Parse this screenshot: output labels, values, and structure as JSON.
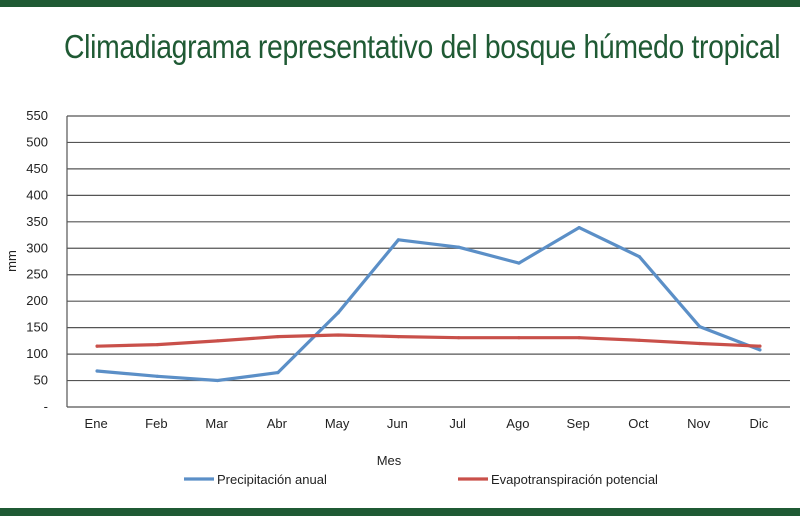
{
  "page": {
    "title": "Climadiagrama representativo del bosque húmedo tropical"
  },
  "colors": {
    "band": "#1f5a34",
    "title": "#1f5a34",
    "grid": "#555555",
    "precipitation": "#5b8fc7",
    "evapotranspiration": "#c9504a"
  },
  "chart_data": {
    "type": "line",
    "title": "Climadiagrama representativo del bosque húmedo tropical",
    "xlabel": "Mes",
    "ylabel": "mm",
    "categories": [
      "Ene",
      "Feb",
      "Mar",
      "Abr",
      "May",
      "Jun",
      "Jul",
      "Ago",
      "Sep",
      "Oct",
      "Nov",
      "Dic"
    ],
    "ylim": [
      0,
      550
    ],
    "yticks": [
      0,
      50,
      100,
      150,
      200,
      250,
      300,
      350,
      400,
      450,
      500,
      550
    ],
    "ytick_labels": [
      "-",
      "50",
      "100",
      "150",
      "200",
      "250",
      "300",
      "350",
      "400",
      "450",
      "500",
      "550"
    ],
    "grid": "horizontal",
    "legend_position": "bottom",
    "series": [
      {
        "name": "Precipitación anual",
        "color": "#5b8fc7",
        "values": [
          68,
          58,
          50,
          65,
          178,
          316,
          302,
          272,
          339,
          284,
          152,
          108
        ]
      },
      {
        "name": "Evapotranspiración potencial",
        "color": "#c9504a",
        "values": [
          115,
          118,
          125,
          133,
          136,
          133,
          131,
          131,
          131,
          126,
          120,
          115
        ]
      }
    ]
  }
}
